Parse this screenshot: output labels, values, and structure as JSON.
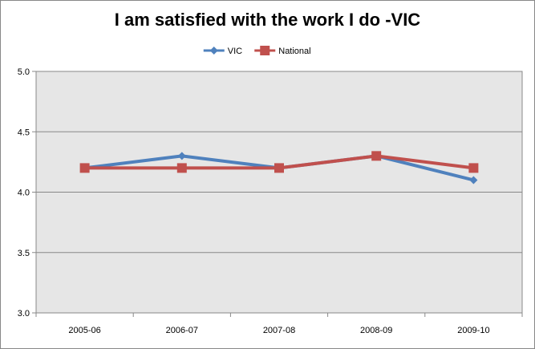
{
  "chart_data": {
    "type": "line",
    "title": "I am satisfied with the work I do -VIC",
    "categories": [
      "2005-06",
      "2006-07",
      "2007-08",
      "2008-09",
      "2009-10"
    ],
    "series": [
      {
        "name": "VIC",
        "values": [
          4.2,
          4.3,
          4.2,
          4.3,
          4.1
        ],
        "color": "#4F81BD",
        "marker": "diamond"
      },
      {
        "name": "National",
        "values": [
          4.2,
          4.2,
          4.2,
          4.3,
          4.2
        ],
        "color": "#C0504D",
        "marker": "square"
      }
    ],
    "ylim": [
      3.0,
      5.0
    ],
    "yticks": [
      "3.0",
      "3.5",
      "4.0",
      "4.5",
      "5.0"
    ],
    "grid": true,
    "legend_position": "top",
    "plot_background": "#E6E6E6"
  }
}
